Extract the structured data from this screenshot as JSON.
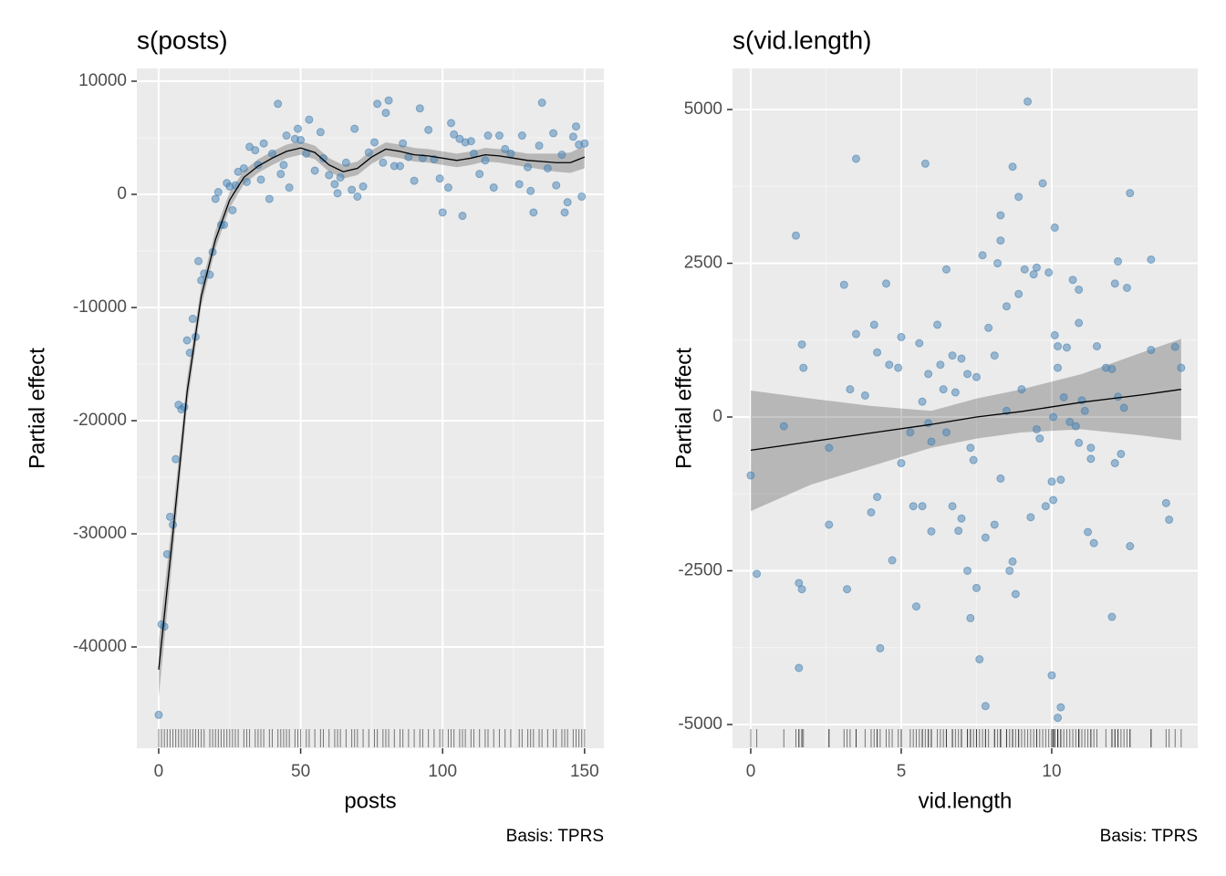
{
  "chart_data": [
    {
      "type": "smooth",
      "title": "s(posts)",
      "xlabel": "posts",
      "ylabel": "Partial effect",
      "caption": "Basis: TPRS",
      "xlim": [
        -7.7,
        156.8
      ],
      "ylim": [
        -48952,
        11129
      ],
      "xticks": [
        0,
        50,
        100,
        150
      ],
      "yticks": [
        10000,
        0,
        -10000,
        -20000,
        -30000,
        -40000
      ],
      "grid": true,
      "point_color": "#4682b4",
      "line_color": "#000000",
      "band_color": "#000000",
      "rug_color": "#000000",
      "points": {
        "x": [
          0,
          1,
          2,
          3,
          4,
          5,
          6,
          7,
          8,
          9,
          10,
          11,
          12,
          13,
          14,
          15,
          16,
          18,
          19,
          20,
          21,
          22,
          23,
          24,
          25,
          26,
          27,
          28,
          30,
          31,
          32,
          34,
          35,
          36,
          37,
          39,
          40,
          42,
          43,
          44,
          45,
          46,
          48,
          49,
          50,
          52,
          53,
          55,
          57,
          58,
          60,
          62,
          63,
          64,
          66,
          68,
          69,
          70,
          72,
          74,
          76,
          77,
          79,
          80,
          81,
          83,
          85,
          86,
          88,
          90,
          92,
          93,
          95,
          97,
          99,
          100,
          102,
          103,
          104,
          106,
          107,
          108,
          110,
          111,
          113,
          115,
          116,
          118,
          120,
          122,
          124,
          127,
          128,
          130,
          131,
          132,
          134,
          135,
          137,
          139,
          140,
          142,
          143,
          144,
          146,
          147,
          148,
          149,
          150
        ],
        "y": [
          -46000,
          -38000,
          -38200,
          -31800,
          -28500,
          -29200,
          -23400,
          -18600,
          -19000,
          -18800,
          -12900,
          -14000,
          -11000,
          -12600,
          -5900,
          -7600,
          -7000,
          -7100,
          -5100,
          -400,
          200,
          -2700,
          -2700,
          1000,
          700,
          -1400,
          800,
          2000,
          2300,
          1100,
          4200,
          3900,
          2600,
          1300,
          4500,
          -400,
          3600,
          8000,
          1800,
          2600,
          5200,
          600,
          4900,
          5800,
          4800,
          3600,
          6600,
          2100,
          5500,
          3200,
          1700,
          900,
          100,
          1500,
          2800,
          400,
          5800,
          -200,
          700,
          3700,
          4600,
          8000,
          2800,
          7200,
          8300,
          2500,
          2500,
          4500,
          3300,
          1200,
          7600,
          3200,
          5700,
          3100,
          1400,
          -1600,
          600,
          6300,
          5300,
          4900,
          -1900,
          4600,
          4700,
          3600,
          1800,
          3000,
          5200,
          600,
          5200,
          4000,
          3600,
          900,
          5200,
          2400,
          300,
          -1600,
          4300,
          8100,
          2300,
          5400,
          800,
          3500,
          -1600,
          -700,
          5100,
          6000,
          4400,
          -200,
          4500
        ]
      },
      "smooth": {
        "x": [
          0,
          5,
          10,
          15,
          20,
          25,
          30,
          35,
          40,
          45,
          50,
          55,
          60,
          65,
          70,
          75,
          80,
          85,
          90,
          95,
          100,
          105,
          110,
          115,
          120,
          125,
          130,
          135,
          140,
          145,
          150
        ],
        "values": [
          -42000,
          -30000,
          -17500,
          -9000,
          -4000,
          -500,
          1500,
          2500,
          3200,
          3800,
          4100,
          3700,
          2600,
          2000,
          2300,
          3300,
          4000,
          3800,
          3500,
          3400,
          3200,
          3000,
          3200,
          3500,
          3400,
          3200,
          3000,
          2900,
          2800,
          2800,
          3300
        ],
        "lower": [
          -44500,
          -31800,
          -18700,
          -9900,
          -4800,
          -1200,
          900,
          1900,
          2600,
          3200,
          3500,
          3100,
          2000,
          1400,
          1700,
          2700,
          3400,
          3200,
          2900,
          2800,
          2600,
          2400,
          2600,
          2900,
          2800,
          2600,
          2400,
          2200,
          2000,
          1900,
          2300
        ],
        "upper": [
          -39500,
          -28200,
          -16300,
          -8100,
          -3200,
          200,
          2100,
          3100,
          3800,
          4400,
          4700,
          4300,
          3200,
          2600,
          2900,
          3900,
          4600,
          4400,
          4100,
          4000,
          3800,
          3600,
          3800,
          4100,
          4000,
          3800,
          3600,
          3600,
          3600,
          3700,
          4300
        ]
      }
    },
    {
      "type": "smooth",
      "title": "s(vid.length)",
      "xlabel": "vid.length",
      "ylabel": "Partial effect",
      "caption": "Basis: TPRS",
      "xlim": [
        -0.606,
        14.85
      ],
      "ylim": [
        -5386,
        5668
      ],
      "xticks": [
        0,
        5,
        10
      ],
      "yticks": [
        5000,
        2500,
        0,
        -2500,
        -5000
      ],
      "grid": true,
      "point_color": "#4682b4",
      "line_color": "#000000",
      "band_color": "#000000",
      "rug_color": "#000000",
      "points": {
        "x": [
          0,
          0.2,
          1.1,
          1.5,
          1.6,
          1.6,
          1.7,
          1.7,
          1.75,
          2.6,
          2.6,
          3.1,
          3.2,
          3.3,
          3.5,
          3.5,
          3.8,
          4.0,
          4.1,
          4.2,
          4.2,
          4.3,
          4.5,
          4.6,
          4.7,
          4.9,
          5.0,
          5.0,
          5.3,
          5.4,
          5.5,
          5.6,
          5.7,
          5.7,
          5.8,
          5.9,
          5.9,
          6.0,
          6.0,
          6.2,
          6.3,
          6.4,
          6.5,
          6.5,
          6.7,
          6.7,
          6.8,
          6.9,
          7.0,
          7.0,
          7.2,
          7.2,
          7.3,
          7.3,
          7.4,
          7.5,
          7.5,
          7.6,
          7.8,
          7.7,
          7.8,
          7.9,
          8.1,
          8.1,
          8.2,
          8.3,
          8.3,
          8.3,
          8.5,
          8.5,
          8.6,
          8.7,
          8.7,
          8.8,
          8.9,
          8.9,
          9.0,
          9.1,
          9.2,
          9.3,
          9.4,
          9.5,
          9.5,
          9.6,
          9.7,
          9.8,
          9.9,
          10.0,
          10.0,
          10.05,
          10.05,
          10.1,
          10.1,
          10.2,
          10.2,
          10.2,
          10.3,
          10.3,
          10.4,
          10.5,
          10.6,
          10.7,
          10.8,
          10.9,
          10.9,
          10.9,
          11.0,
          11.1,
          11.2,
          11.3,
          11.3,
          11.4,
          11.5,
          11.8,
          12.0,
          12.1,
          12.0,
          12.1,
          12.2,
          12.2,
          12.3,
          12.4,
          12.5,
          12.6,
          12.6,
          13.3,
          13.3,
          13.8,
          13.9,
          14.1,
          14.3
        ],
        "y": [
          -950,
          -2550,
          -150,
          2950,
          -4080,
          -2700,
          -2800,
          1180,
          800,
          -500,
          -1750,
          2150,
          -2800,
          450,
          4200,
          1350,
          350,
          -1550,
          1500,
          -1300,
          1050,
          -3760,
          2170,
          850,
          -2330,
          800,
          -750,
          1300,
          -250,
          -1450,
          -3080,
          1200,
          250,
          -1450,
          4120,
          -100,
          700,
          -1860,
          -400,
          1500,
          850,
          450,
          2400,
          -250,
          1000,
          -1450,
          400,
          -1850,
          950,
          -1650,
          -2500,
          700,
          -3270,
          -500,
          -700,
          650,
          -2780,
          -3940,
          -4700,
          2630,
          -1960,
          1450,
          1000,
          -1750,
          2500,
          -1000,
          2870,
          3280,
          1800,
          100,
          -2500,
          4070,
          -2350,
          -2880,
          2000,
          3580,
          450,
          2400,
          5130,
          -1630,
          2320,
          -200,
          2430,
          -350,
          3800,
          -1450,
          2350,
          -1050,
          -4200,
          -1350,
          0,
          3080,
          1330,
          1150,
          800,
          -4890,
          -4720,
          -1020,
          320,
          1130,
          -80,
          2230,
          -150,
          -420,
          1530,
          2070,
          270,
          100,
          -1870,
          -500,
          -680,
          -2050,
          1150,
          800,
          780,
          -750,
          -3250,
          2170,
          2530,
          330,
          -600,
          150,
          2100,
          3640,
          -2100,
          2560,
          1090,
          -1400,
          -1670,
          1140,
          800
        ]
      },
      "smooth": {
        "x": [
          0,
          2,
          4,
          6,
          7.5,
          9,
          11,
          13,
          14.3
        ],
        "values": [
          -540,
          -400,
          -260,
          -120,
          0,
          90,
          240,
          360,
          450
        ],
        "lower": [
          -1530,
          -1100,
          -800,
          -500,
          -350,
          -250,
          -200,
          -300,
          -380
        ],
        "upper": [
          430,
          300,
          180,
          100,
          300,
          450,
          700,
          1050,
          1270
        ]
      }
    }
  ]
}
